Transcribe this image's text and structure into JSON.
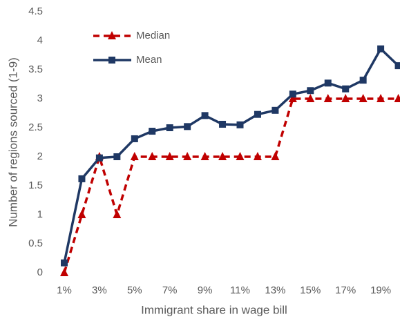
{
  "chart_data": {
    "type": "line",
    "x_label": "Immigrant share in wage bill",
    "y_label": "Number of regions sourced (1-9)",
    "categories": [
      "1%",
      null,
      "3%",
      null,
      "5%",
      null,
      "7%",
      null,
      "9%",
      null,
      "11%",
      null,
      "13%",
      null,
      "15%",
      null,
      "17%",
      null,
      "19%",
      null
    ],
    "series": [
      {
        "name": "Median",
        "color": "#c00000",
        "dashed": true,
        "marker": "triangle",
        "values": [
          0,
          1,
          2,
          1,
          2,
          2,
          2,
          2,
          2,
          2,
          2,
          2,
          2,
          3,
          3,
          3,
          3,
          3,
          3,
          3
        ]
      },
      {
        "name": "Mean",
        "color": "#1f3864",
        "dashed": false,
        "marker": "square",
        "values": [
          0.17,
          1.62,
          1.98,
          2.0,
          2.31,
          2.44,
          2.5,
          2.52,
          2.71,
          2.56,
          2.55,
          2.73,
          2.8,
          3.08,
          3.14,
          3.27,
          3.17,
          3.32,
          3.86,
          3.57
        ]
      }
    ],
    "ylim": [
      0,
      4.5
    ],
    "yticks": [
      0,
      0.5,
      1,
      1.5,
      2,
      2.5,
      3,
      3.5,
      4,
      4.5
    ],
    "grid": false,
    "legend": "top-left"
  }
}
